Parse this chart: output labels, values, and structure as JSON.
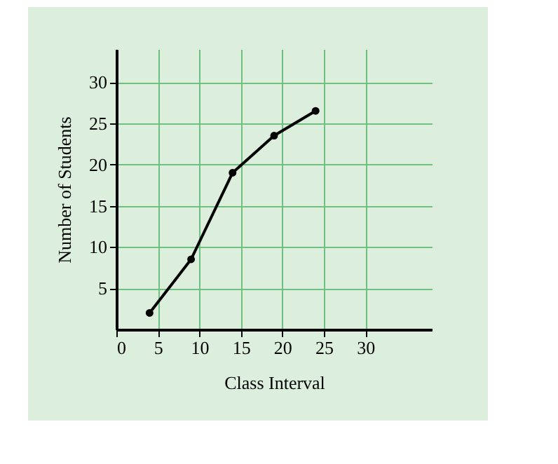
{
  "chart_data": {
    "type": "line",
    "xlabel": "Class Interval",
    "ylabel": "Number of Students",
    "x": [
      4,
      9,
      14,
      19,
      24
    ],
    "series": [
      {
        "color": "#000000",
        "values": [
          2,
          8.5,
          19,
          23.5,
          26.5
        ]
      }
    ],
    "xlim": [
      0,
      38
    ],
    "xticks": [
      0,
      5,
      10,
      15,
      20,
      25,
      30
    ],
    "ylim": [
      0,
      34
    ],
    "yticks": [
      5,
      10,
      15,
      20,
      25,
      30
    ],
    "grid": true,
    "marker": "circle",
    "line_style": "solid"
  }
}
